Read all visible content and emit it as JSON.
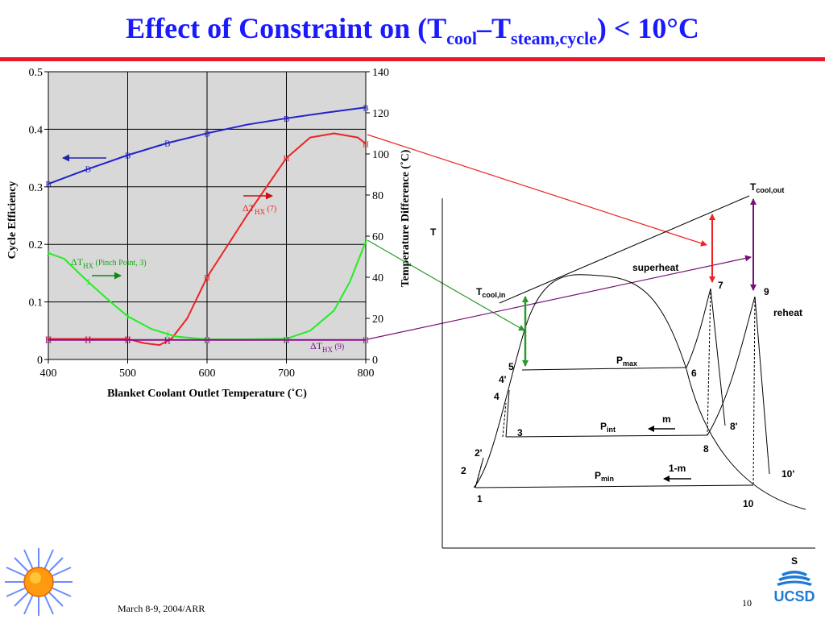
{
  "slide": {
    "title_main": "Effect of Constraint on (T",
    "title_sub1": "cool",
    "title_mid": "–T",
    "title_sub2": "steam,cycle",
    "title_end": ") < 10°C",
    "footer_date": "March 8-9, 2004/ARR",
    "page_number": "10",
    "logo_text": "UCSD",
    "logo_letter": "S",
    "colors": {
      "title": "#1a1aff",
      "rule": "#e8192c"
    }
  },
  "chart_data": [
    {
      "type": "line",
      "x_label": "Blanket Coolant Outlet Temperature (˚C)",
      "y_label_left": "Cycle Efficiency",
      "y_label_right": "Temperature Difference (˚C)",
      "xlim": [
        400,
        800
      ],
      "ylim_left": [
        0,
        0.5
      ],
      "ylim_right": [
        0,
        140
      ],
      "x_ticks": [
        400,
        500,
        600,
        700,
        800
      ],
      "y_ticks_left": [
        "0",
        "0.1",
        "0.2",
        "0.3",
        "0.4",
        "0.5"
      ],
      "y_tick_values_left": [
        0,
        0.1,
        0.2,
        0.3,
        0.4,
        0.5
      ],
      "y_ticks_right": [
        "0",
        "20",
        "40",
        "60",
        "80",
        "100",
        "120",
        "140"
      ],
      "y_tick_values_right": [
        0,
        20,
        40,
        60,
        80,
        100,
        120,
        140
      ],
      "grid": true,
      "series": [
        {
          "axis": "left",
          "color": "#2222cc",
          "marker": "B",
          "x": [
            400,
            450,
            500,
            550,
            600,
            650,
            700,
            750,
            800
          ],
          "y": [
            0.305,
            0.331,
            0.355,
            0.376,
            0.393,
            0.408,
            0.419,
            0.429,
            0.438
          ],
          "marker_x": [
            400,
            450,
            500,
            550,
            600,
            700,
            800
          ]
        },
        {
          "axis": "right",
          "color": "#ee2222",
          "marker": "H",
          "x": [
            400,
            450,
            500,
            520,
            540,
            555,
            575,
            600,
            650,
            700,
            730,
            760,
            790,
            800
          ],
          "y": [
            10,
            10,
            10,
            8,
            7,
            10,
            20,
            40,
            70,
            98,
            108,
            110,
            108,
            105
          ],
          "marker_x": [
            400,
            450,
            500,
            550,
            600,
            700,
            800
          ]
        },
        {
          "axis": "left",
          "color": "#22ee22",
          "marker": "J",
          "x": [
            400,
            420,
            450,
            480,
            500,
            530,
            560,
            600,
            650,
            700,
            730,
            760,
            780,
            800
          ],
          "y": [
            0.185,
            0.175,
            0.135,
            0.098,
            0.075,
            0.053,
            0.04,
            0.035,
            0.035,
            0.036,
            0.05,
            0.085,
            0.135,
            0.205
          ],
          "marker_x": [
            400,
            450,
            500,
            550,
            600,
            700,
            800
          ]
        },
        {
          "axis": "left",
          "color": "#881188",
          "marker": "H",
          "x": [
            400,
            800
          ],
          "y": [
            0.034,
            0.034
          ],
          "marker_x": [
            400,
            450,
            500,
            550,
            600,
            700,
            800
          ]
        }
      ],
      "annotations": {
        "dthx7": {
          "delta": "ΔT",
          "sub": "HX",
          "suffix": " (7)",
          "color": "#ee2222"
        },
        "pinch": {
          "delta": "ΔT",
          "sub": "HX",
          "suffix": " (Pinch Point, 3)",
          "color": "#11aa11"
        },
        "dthx9": {
          "delta": "ΔT",
          "sub": "HX",
          "suffix": " (9)",
          "color": "#881188"
        }
      }
    },
    {
      "type": "diagram",
      "axis_labels": {
        "t": "T",
        "s": "S"
      },
      "labels": {
        "t_cool_out_main": "T",
        "t_cool_out_sub": "cool,out",
        "t_cool_in_main": "T",
        "t_cool_in_sub": "cool,in",
        "superheat": "superheat",
        "reheat": "reheat",
        "p_max_main": "P",
        "p_max_sub": "max",
        "p_int_main": "P",
        "p_int_sub": "int",
        "p_min_main": "P",
        "p_min_sub": "min",
        "m": "m",
        "one_minus_m": "1-m"
      },
      "state_points": [
        "1",
        "2",
        "2'",
        "3",
        "4",
        "4'",
        "5",
        "6",
        "7",
        "8",
        "8'",
        "9",
        "10",
        "10'"
      ]
    }
  ]
}
